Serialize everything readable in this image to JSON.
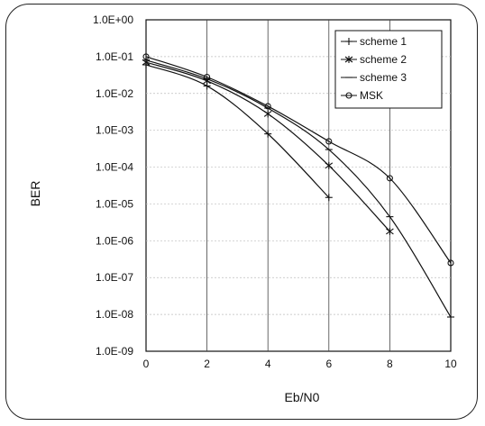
{
  "chart_data": {
    "type": "line",
    "xlabel": "Eb/N0",
    "ylabel": "BER",
    "xlim": [
      0,
      10
    ],
    "ylim": [
      1e-09,
      1
    ],
    "y_scale": "log",
    "x_ticks": [
      "0",
      "2",
      "4",
      "6",
      "8",
      "10"
    ],
    "y_ticks": [
      "1.0E+00",
      "1.0E-01",
      "1.0E-02",
      "1.0E-03",
      "1.0E-04",
      "1.0E-05",
      "1.0E-06",
      "1.0E-07",
      "1.0E-08",
      "1.0E-09"
    ],
    "grid": true,
    "legend_position": "top-right",
    "series": [
      {
        "name": "scheme 1",
        "marker": "plus",
        "color": "#111111",
        "x": [
          0,
          2,
          4,
          6
        ],
        "y": [
          0.06,
          0.016,
          0.0008,
          1.5e-05
        ]
      },
      {
        "name": "scheme 2",
        "marker": "star",
        "color": "#111111",
        "x": [
          0,
          2,
          4,
          6,
          8
        ],
        "y": [
          0.07,
          0.022,
          0.0028,
          0.00011,
          1.8e-06
        ]
      },
      {
        "name": "scheme 3",
        "marker": "dash",
        "color": "#111111",
        "x": [
          0,
          2,
          4,
          6,
          8,
          10
        ],
        "y": [
          0.08,
          0.025,
          0.004,
          0.0003,
          4.5e-06,
          8.5e-09
        ]
      },
      {
        "name": "MSK",
        "marker": "circle",
        "color": "#111111",
        "x": [
          0,
          2,
          4,
          6,
          8,
          10
        ],
        "y": [
          0.1,
          0.028,
          0.0045,
          0.0005,
          5e-05,
          2.5e-07
        ]
      }
    ]
  }
}
